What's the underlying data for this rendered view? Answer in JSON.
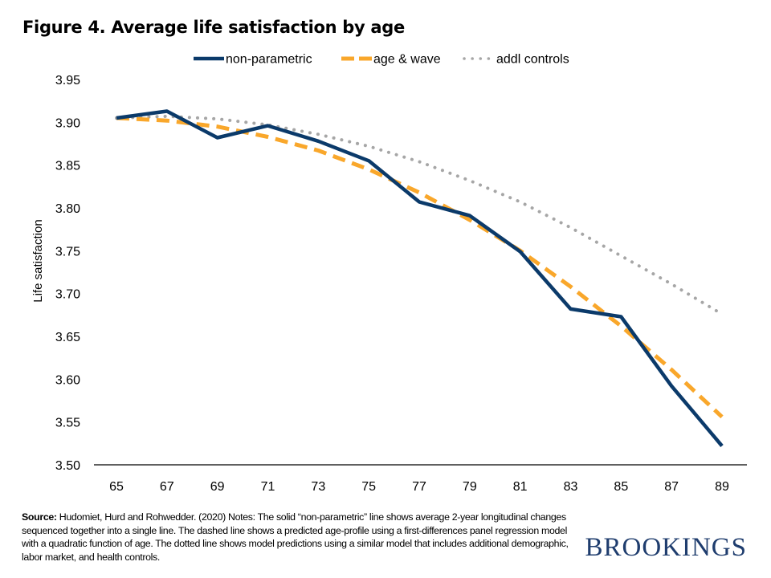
{
  "chart_data": {
    "type": "line",
    "title": "Figure 4. Average life satisfaction by age",
    "xlabel": "",
    "ylabel": "Life satisfaction",
    "x": [
      65,
      66,
      67,
      68,
      69,
      70,
      71,
      72,
      73,
      74,
      75,
      76,
      77,
      78,
      79,
      80,
      81,
      82,
      83,
      84,
      85,
      86,
      87,
      88,
      89
    ],
    "x_tick_labels": [
      "65",
      "67",
      "69",
      "71",
      "73",
      "75",
      "77",
      "79",
      "81",
      "83",
      "85",
      "87",
      "89"
    ],
    "y_tick_labels": [
      "3.50",
      "3.55",
      "3.60",
      "3.65",
      "3.70",
      "3.75",
      "3.80",
      "3.85",
      "3.90",
      "3.95"
    ],
    "ylim": [
      3.5,
      3.95
    ],
    "xlim": [
      65,
      89
    ],
    "grid": false,
    "legend_position": "top",
    "series": [
      {
        "name": "non-parametric",
        "style": "solid",
        "color": "#0b3a6a",
        "x": [
          65,
          67,
          69,
          71,
          73,
          75,
          77,
          79,
          81,
          83,
          85,
          87,
          89
        ],
        "values": [
          3.905,
          3.913,
          3.882,
          3.896,
          3.878,
          3.855,
          3.807,
          3.791,
          3.749,
          3.682,
          3.673,
          3.592,
          3.522
        ]
      },
      {
        "name": "age & wave",
        "style": "dashed",
        "color": "#f9a72b",
        "x": [
          65,
          67,
          69,
          71,
          73,
          75,
          77,
          79,
          81,
          83,
          85,
          87,
          89
        ],
        "values": [
          3.905,
          3.902,
          3.895,
          3.883,
          3.867,
          3.845,
          3.818,
          3.786,
          3.75,
          3.708,
          3.662,
          3.611,
          3.556
        ]
      },
      {
        "name": "addl controls",
        "style": "dotted",
        "color": "#a6a6a6",
        "x": [
          65,
          67,
          69,
          71,
          73,
          75,
          77,
          79,
          81,
          83,
          85,
          87,
          89
        ],
        "values": [
          3.905,
          3.907,
          3.904,
          3.897,
          3.886,
          3.872,
          3.854,
          3.832,
          3.807,
          3.777,
          3.744,
          3.711,
          3.676
        ]
      }
    ]
  },
  "notes": {
    "source_label": "Source:",
    "source_text": " Hudomiet, Hurd and Rohwedder. (2020) Notes: The solid “non-parametric” line shows average 2-year longitudinal changes sequenced together into a single line. The dashed line shows a predicted age-profile using a first-differences panel regression model with a quadratic function of age. The dotted line shows model predictions using a similar model that includes additional demographic, labor market, and health controls."
  },
  "logo": "BROOKINGS"
}
